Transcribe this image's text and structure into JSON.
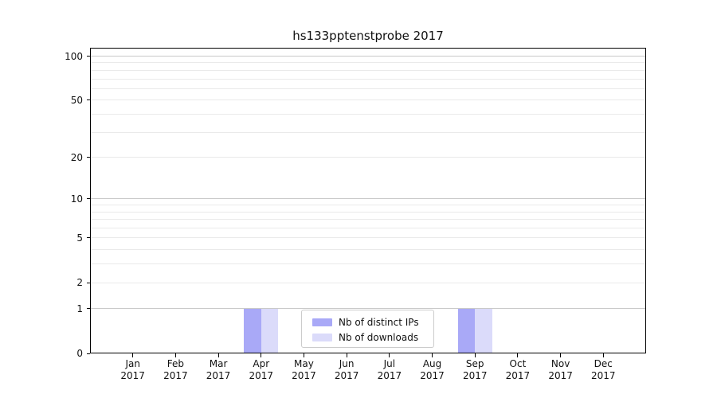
{
  "chart_data": {
    "type": "bar",
    "title": "hs133pptenstprobe 2017",
    "categories": [
      "Jan 2017",
      "Feb 2017",
      "Mar 2017",
      "Apr 2017",
      "May 2017",
      "Jun 2017",
      "Jul 2017",
      "Aug 2017",
      "Sep 2017",
      "Oct 2017",
      "Nov 2017",
      "Dec 2017"
    ],
    "x_tick_line1": [
      "Jan",
      "Feb",
      "Mar",
      "Apr",
      "May",
      "Jun",
      "Jul",
      "Aug",
      "Sep",
      "Oct",
      "Nov",
      "Dec"
    ],
    "x_tick_line2": "2017",
    "series": [
      {
        "name": "Nb of distinct IPs",
        "color": "#a9a9f7",
        "values": [
          0,
          0,
          0,
          1,
          0,
          0,
          0,
          0,
          1,
          0,
          0,
          0
        ]
      },
      {
        "name": "Nb of downloads",
        "color": "#dbdbfa",
        "values": [
          0,
          0,
          0,
          1,
          0,
          0,
          0,
          0,
          1,
          0,
          0,
          0
        ]
      }
    ],
    "xlabel": "",
    "ylabel": "",
    "yscale": "log1p",
    "ylim": [
      0,
      114
    ],
    "yticks_labeled": [
      0,
      1,
      2,
      5,
      10,
      20,
      50,
      100
    ],
    "grid": "horizontal",
    "grid_major_at": [
      1,
      10,
      100
    ],
    "grid_minor_at": [
      2,
      3,
      4,
      5,
      6,
      7,
      8,
      9,
      20,
      30,
      40,
      50,
      60,
      70,
      80,
      90
    ],
    "legend": {
      "position": "lower center",
      "entries": [
        "Nb of distinct IPs",
        "Nb of downloads"
      ]
    },
    "colors": {
      "bar_distinct_ips": "#a9a9f7",
      "bar_downloads": "#dbdbfa",
      "grid_major": "#c9c9c9",
      "grid_minor": "#eaeaea",
      "spine": "#000000",
      "text": "#111111",
      "legend_border": "#cccccc",
      "background": "#ffffff"
    }
  }
}
